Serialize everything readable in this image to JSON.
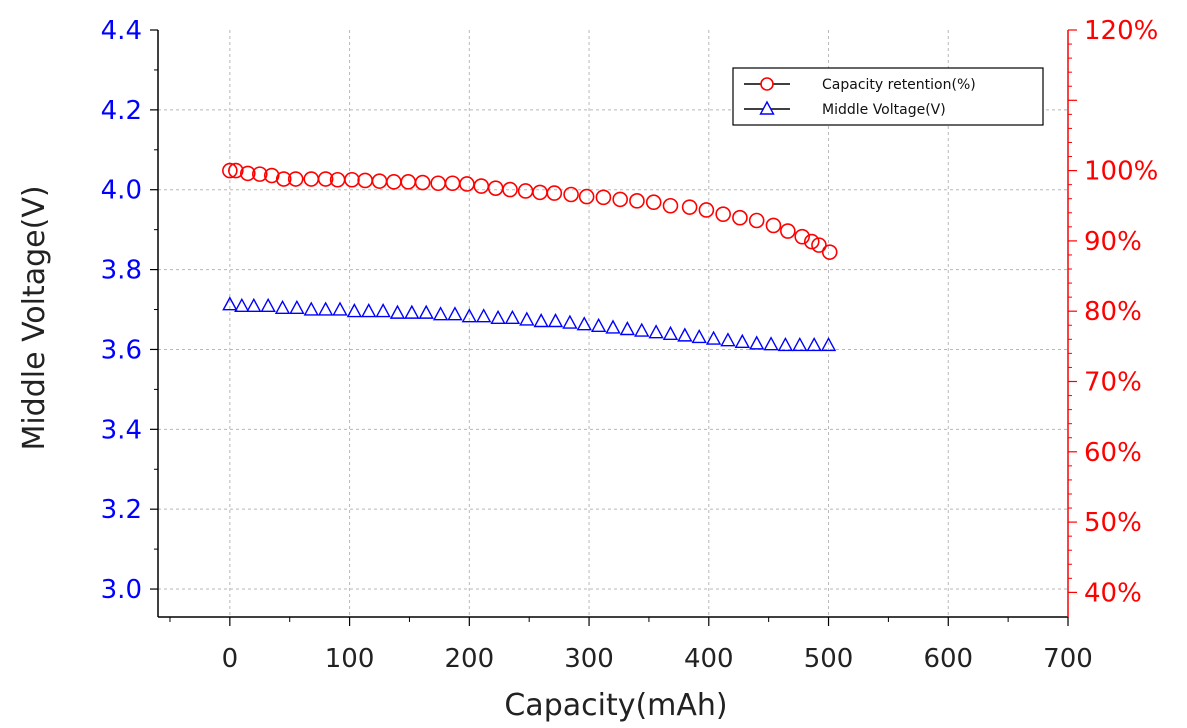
{
  "chart_data": {
    "type": "scatter",
    "xlabel": "Capacity(mAh)",
    "ylabel": "Middle Voltage(V)",
    "xlim": [
      -60,
      700
    ],
    "x_ticks": [
      0,
      100,
      200,
      300,
      400,
      500,
      600,
      700
    ],
    "x_tick_labels": [
      "0",
      "100",
      "200",
      "300",
      "400",
      "500",
      "600",
      "700"
    ],
    "ylim": [
      2.93,
      4.4
    ],
    "y_ticks": [
      3.0,
      3.2,
      3.4,
      3.6,
      3.8,
      4.0,
      4.2,
      4.4
    ],
    "y_tick_labels": [
      "3.0",
      "3.2",
      "3.4",
      "3.6",
      "3.8",
      "4.0",
      "4.2",
      "4.4"
    ],
    "y2lim": [
      36.5,
      120
    ],
    "y2_ticks": [
      40,
      50,
      60,
      70,
      80,
      90,
      100,
      110,
      120
    ],
    "y2_tick_labels": [
      "40%",
      "50%",
      "60%",
      "70%",
      "80%",
      "90%",
      "100%",
      "",
      "120%"
    ],
    "grid": true,
    "legend_position": "top-right",
    "series": [
      {
        "name": "Capacity retention(%)",
        "axis": "right",
        "marker": "circle",
        "color": "#ff0000",
        "x": [
          0,
          5,
          15,
          25,
          35,
          45,
          55,
          68,
          80,
          90,
          102,
          113,
          125,
          137,
          149,
          161,
          174,
          186,
          198,
          210,
          222,
          234,
          247,
          259,
          271,
          285,
          298,
          312,
          326,
          340,
          354,
          368,
          384,
          398,
          412,
          426,
          440,
          454,
          466,
          478,
          486,
          492,
          501
        ],
        "values": [
          100.0,
          100.0,
          99.6,
          99.5,
          99.3,
          98.8,
          98.8,
          98.8,
          98.8,
          98.7,
          98.7,
          98.6,
          98.5,
          98.4,
          98.4,
          98.3,
          98.2,
          98.2,
          98.1,
          97.8,
          97.5,
          97.3,
          97.1,
          96.9,
          96.8,
          96.6,
          96.3,
          96.2,
          95.9,
          95.7,
          95.5,
          95.0,
          94.8,
          94.4,
          93.8,
          93.3,
          92.9,
          92.2,
          91.4,
          90.6,
          89.9,
          89.4,
          88.4
        ]
      },
      {
        "name": "Middle Voltage(V)",
        "axis": "left",
        "marker": "triangle",
        "color": "#0000ff",
        "x": [
          0,
          10,
          20,
          32,
          44,
          56,
          68,
          80,
          92,
          104,
          116,
          128,
          140,
          152,
          164,
          176,
          188,
          200,
          212,
          224,
          236,
          248,
          260,
          272,
          284,
          296,
          308,
          320,
          332,
          344,
          356,
          368,
          380,
          392,
          404,
          416,
          428,
          440,
          452,
          464,
          476,
          488,
          500
        ],
        "values": [
          3.712,
          3.708,
          3.708,
          3.708,
          3.703,
          3.703,
          3.699,
          3.699,
          3.699,
          3.695,
          3.695,
          3.695,
          3.691,
          3.691,
          3.691,
          3.687,
          3.687,
          3.682,
          3.682,
          3.678,
          3.678,
          3.674,
          3.67,
          3.67,
          3.666,
          3.662,
          3.658,
          3.654,
          3.65,
          3.646,
          3.642,
          3.638,
          3.634,
          3.63,
          3.626,
          3.622,
          3.618,
          3.614,
          3.612,
          3.61,
          3.61,
          3.61,
          3.61
        ]
      }
    ]
  }
}
